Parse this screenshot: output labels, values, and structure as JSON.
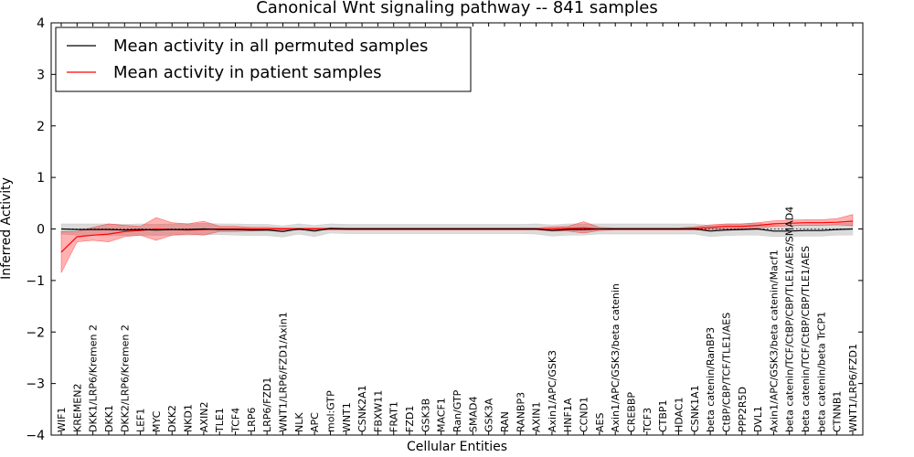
{
  "chart_data": {
    "type": "line",
    "title": "Canonical Wnt signaling pathway -- 841 samples",
    "xlabel": "Cellular Entities",
    "ylabel": "Inferred Activity",
    "ylim": [
      -4,
      4
    ],
    "yticks": [
      -4,
      -3,
      -2,
      -1,
      0,
      1,
      2,
      3,
      4
    ],
    "ytick_labels": [
      "−4",
      "−3",
      "−2",
      "−1",
      "0",
      "1",
      "2",
      "3",
      "4"
    ],
    "legend_position": "top-left",
    "categories": [
      "WIF1",
      "KREMEN2",
      "DKK1/LRP6/Kremen 2",
      "DKK1",
      "DKK2/LRP6/Kremen 2",
      "LEF1",
      "MYC",
      "DKK2",
      "NKD1",
      "AXIN2",
      "TLE1",
      "TCF4",
      "LRP6",
      "LRP6/FZD1",
      "WNT1/LRP6/FZD1/Axin1",
      "NLK",
      "APC",
      "mol:GTP",
      "WNT1",
      "CSNK2A1",
      "FBXW11",
      "FRAT1",
      "FZD1",
      "GSK3B",
      "MACF1",
      "Ran/GTP",
      "SMAD4",
      "GSK3A",
      "RAN",
      "RANBP3",
      "AXIN1",
      "Axin1/APC/GSK3",
      "HNF1A",
      "CCND1",
      "AES",
      "Axin1/APC/GSK3/beta catenin",
      "CREBBP",
      "TCF3",
      "CTBP1",
      "HDAC1",
      "CSNK1A1",
      "beta catenin/RanBP3",
      "CtBP/CBP/TCF/TLE1/AES",
      "PPP2R5D",
      "DVL1",
      "Axin1/APC/GSK3/beta catenin/Macf1",
      "beta catenin/TCF/CtBP/CBP/TLE1/AES/SMAD4",
      "beta catenin/TCF/CtBP/CBP/TLE1/AES",
      "beta catenin/beta TrCP1",
      "CTNNB1",
      "WNT1/LRP6/FZD1"
    ],
    "series": [
      {
        "name": "Mean activity in all permuted samples",
        "color": "#000000",
        "band_color": "#b0b0b0",
        "values": [
          0.0,
          -0.01,
          -0.01,
          -0.01,
          -0.02,
          -0.01,
          -0.02,
          -0.01,
          -0.01,
          0.0,
          -0.01,
          -0.01,
          -0.02,
          -0.02,
          -0.05,
          0.0,
          -0.04,
          0.01,
          0.0,
          0.0,
          0.0,
          0.0,
          0.0,
          0.0,
          0.0,
          0.0,
          0.0,
          0.0,
          0.0,
          0.0,
          0.0,
          -0.03,
          -0.01,
          -0.01,
          0.0,
          0.0,
          0.0,
          0.0,
          0.0,
          0.0,
          0.0,
          -0.04,
          -0.02,
          -0.01,
          0.0,
          -0.04,
          -0.04,
          -0.03,
          -0.03,
          -0.01,
          0.0
        ],
        "lower": [
          -0.1,
          -0.12,
          -0.12,
          -0.12,
          -0.13,
          -0.12,
          -0.13,
          -0.12,
          -0.12,
          -0.11,
          -0.11,
          -0.12,
          -0.13,
          -0.13,
          -0.16,
          -0.1,
          -0.15,
          -0.08,
          -0.09,
          -0.09,
          -0.09,
          -0.09,
          -0.09,
          -0.09,
          -0.09,
          -0.09,
          -0.09,
          -0.09,
          -0.09,
          -0.09,
          -0.1,
          -0.14,
          -0.12,
          -0.12,
          -0.1,
          -0.1,
          -0.1,
          -0.1,
          -0.1,
          -0.1,
          -0.1,
          -0.15,
          -0.13,
          -0.12,
          -0.12,
          -0.15,
          -0.15,
          -0.14,
          -0.14,
          -0.12,
          -0.12
        ],
        "upper": [
          0.1,
          0.1,
          0.1,
          0.1,
          0.09,
          0.1,
          0.09,
          0.1,
          0.1,
          0.11,
          0.1,
          0.1,
          0.09,
          0.09,
          0.06,
          0.1,
          0.07,
          0.1,
          0.09,
          0.09,
          0.09,
          0.09,
          0.09,
          0.09,
          0.09,
          0.09,
          0.09,
          0.09,
          0.09,
          0.09,
          0.1,
          0.08,
          0.1,
          0.1,
          0.1,
          0.1,
          0.1,
          0.1,
          0.1,
          0.1,
          0.1,
          0.07,
          0.09,
          0.1,
          0.12,
          0.07,
          0.07,
          0.08,
          0.08,
          0.1,
          0.12
        ]
      },
      {
        "name": "Mean activity in patient samples",
        "color": "#ff0000",
        "band_color": "#ff0000",
        "values": [
          -0.45,
          -0.15,
          -0.12,
          -0.1,
          -0.05,
          -0.03,
          0.0,
          -0.01,
          -0.02,
          -0.01,
          0.0,
          0.0,
          0.0,
          0.0,
          0.0,
          0.0,
          0.0,
          0.0,
          0.0,
          0.0,
          0.0,
          0.0,
          0.0,
          0.0,
          0.0,
          0.0,
          0.0,
          0.0,
          0.0,
          0.0,
          0.0,
          0.0,
          0.01,
          0.02,
          0.0,
          0.0,
          0.0,
          0.0,
          0.0,
          0.0,
          0.01,
          0.03,
          0.05,
          0.05,
          0.07,
          0.1,
          0.11,
          0.12,
          0.12,
          0.13,
          0.15
        ],
        "lower": [
          -0.85,
          -0.25,
          -0.22,
          -0.25,
          -0.15,
          -0.12,
          -0.22,
          -0.12,
          -0.1,
          -0.12,
          -0.05,
          -0.05,
          -0.04,
          -0.03,
          -0.03,
          -0.02,
          -0.02,
          -0.02,
          -0.02,
          -0.02,
          -0.02,
          -0.02,
          -0.02,
          -0.02,
          -0.02,
          -0.02,
          -0.02,
          -0.02,
          -0.02,
          -0.02,
          -0.02,
          -0.04,
          -0.04,
          -0.08,
          -0.03,
          -0.02,
          -0.02,
          -0.02,
          -0.02,
          -0.02,
          -0.02,
          -0.01,
          0.0,
          0.0,
          0.02,
          0.05,
          0.06,
          0.07,
          0.07,
          0.08,
          0.06
        ],
        "upper": [
          -0.05,
          -0.05,
          0.03,
          0.1,
          0.07,
          0.05,
          0.22,
          0.12,
          0.1,
          0.15,
          0.05,
          0.05,
          0.03,
          0.03,
          0.02,
          0.02,
          0.02,
          0.02,
          0.02,
          0.02,
          0.02,
          0.02,
          0.02,
          0.02,
          0.02,
          0.02,
          0.02,
          0.02,
          0.02,
          0.02,
          0.02,
          0.04,
          0.05,
          0.14,
          0.03,
          0.02,
          0.02,
          0.02,
          0.02,
          0.02,
          0.04,
          0.08,
          0.1,
          0.1,
          0.12,
          0.16,
          0.17,
          0.18,
          0.18,
          0.2,
          0.28
        ]
      }
    ]
  }
}
